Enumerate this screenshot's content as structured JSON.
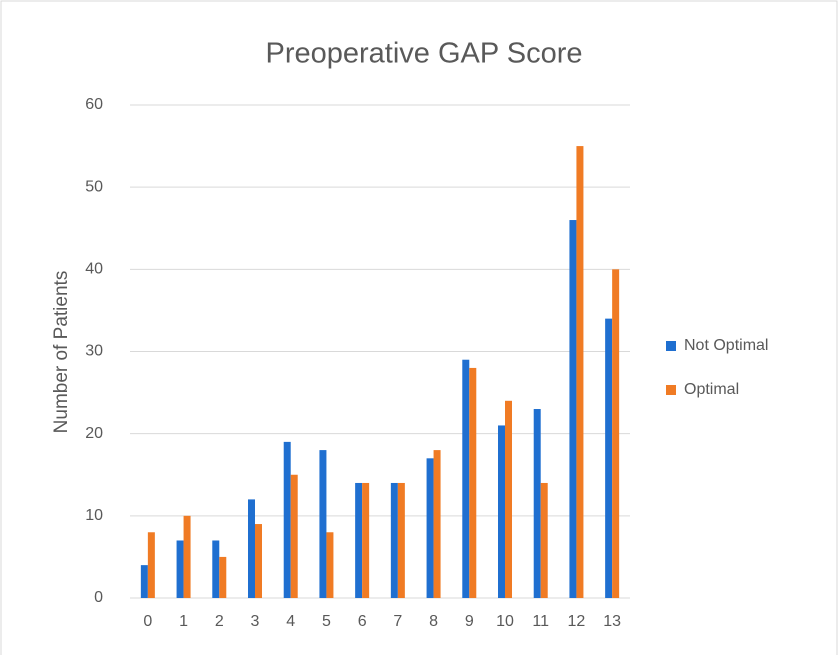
{
  "chart_data": {
    "type": "bar",
    "title": "Preoperative GAP Score",
    "y_label": "Number of Patients",
    "categories": [
      "0",
      "1",
      "2",
      "3",
      "4",
      "5",
      "6",
      "7",
      "8",
      "9",
      "10",
      "11",
      "12",
      "13"
    ],
    "series": [
      {
        "name": "Not Optimal",
        "color": "#1f6fd0",
        "values": [
          4,
          7,
          7,
          12,
          19,
          18,
          14,
          14,
          17,
          29,
          21,
          23,
          46,
          34
        ]
      },
      {
        "name": "Optimal",
        "color": "#f07b24",
        "values": [
          8,
          10,
          5,
          9,
          15,
          8,
          14,
          14,
          18,
          28,
          24,
          14,
          55,
          40
        ]
      }
    ],
    "ylim": [
      0,
      60
    ],
    "yticks": [
      0,
      10,
      20,
      30,
      40,
      50,
      60
    ],
    "grid": true,
    "legend": "right"
  }
}
